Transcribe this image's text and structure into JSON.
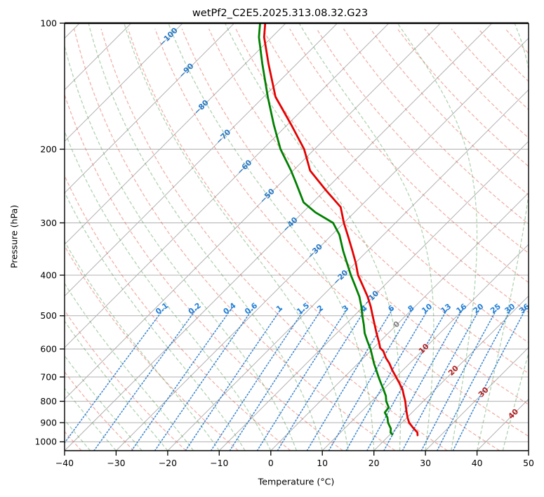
{
  "chart_data": {
    "type": "line",
    "variant": "skew-T log-p thermodynamic sounding",
    "title": "wetPf2_C2E5.2025.313.08.32.G23",
    "xlabel": "Temperature (°C)",
    "ylabel": "Pressure (hPa)",
    "xlim": [
      -40,
      50
    ],
    "pressure_lim": [
      1050,
      100
    ],
    "skew": "isotherms at 45 degrees, log-pressure vertical axis",
    "grid": true,
    "x_ticks": [
      {
        "v": -40,
        "label": "−40"
      },
      {
        "v": -30,
        "label": "−30"
      },
      {
        "v": -20,
        "label": "−20"
      },
      {
        "v": -10,
        "label": "−10"
      },
      {
        "v": 0,
        "label": "0"
      },
      {
        "v": 10,
        "label": "10"
      },
      {
        "v": 20,
        "label": "20"
      },
      {
        "v": 30,
        "label": "30"
      },
      {
        "v": 40,
        "label": "40"
      },
      {
        "v": 50,
        "label": "50"
      }
    ],
    "y_ticks": [
      {
        "v": 100,
        "label": "100"
      },
      {
        "v": 200,
        "label": "200"
      },
      {
        "v": 300,
        "label": "300"
      },
      {
        "v": 400,
        "label": "400"
      },
      {
        "v": 500,
        "label": "500"
      },
      {
        "v": 600,
        "label": "600"
      },
      {
        "v": 700,
        "label": "700"
      },
      {
        "v": 800,
        "label": "800"
      },
      {
        "v": 900,
        "label": "900"
      },
      {
        "v": 1000,
        "label": "1000"
      }
    ],
    "pressure_gridlines": [
      100,
      200,
      300,
      400,
      500,
      600,
      700,
      800,
      900,
      1000
    ],
    "isotherms": {
      "start": -120,
      "end": 50,
      "step": 10
    },
    "isotherm_labels": [
      {
        "t": -100,
        "p": 108
      },
      {
        "t": -90,
        "p": 130
      },
      {
        "t": -80,
        "p": 159
      },
      {
        "t": -70,
        "p": 187
      },
      {
        "t": -60,
        "p": 221
      },
      {
        "t": -50,
        "p": 259
      },
      {
        "t": -40,
        "p": 303
      },
      {
        "t": -30,
        "p": 351
      },
      {
        "t": -20,
        "p": 405
      },
      {
        "t": -10,
        "p": 454
      },
      {
        "t": 0,
        "p": 525
      },
      {
        "t": 10,
        "p": 600
      },
      {
        "t": 20,
        "p": 677
      },
      {
        "t": 30,
        "p": 762
      },
      {
        "t": 40,
        "p": 859
      }
    ],
    "dry_adiabats": {
      "theta_start_c": -40,
      "theta_end_c": 190,
      "step": 10
    },
    "moist_adiabats": {
      "t_start_c": -100,
      "t_end_c": 45,
      "step": 5,
      "p_start": 1050
    },
    "mixing_ratio_g_per_kg": [
      0.1,
      0.2,
      0.4,
      0.6,
      1,
      1.5,
      2,
      3,
      4,
      6,
      8,
      10,
      13,
      16,
      20,
      25,
      30,
      36
    ],
    "mixing_ratio_line_top_p": 480,
    "mixing_ratio_label_p": 487,
    "series": [
      {
        "name": "temperature",
        "units": "pairs of [pressure_hPa, temperature_C]",
        "points": [
          [
            100,
            -84.0
          ],
          [
            108,
            -81.5
          ],
          [
            125,
            -75.5
          ],
          [
            150,
            -67.7
          ],
          [
            175,
            -59.2
          ],
          [
            200,
            -52.0
          ],
          [
            225,
            -46.7
          ],
          [
            250,
            -40.0
          ],
          [
            275,
            -33.7
          ],
          [
            300,
            -30.0
          ],
          [
            325,
            -26.3
          ],
          [
            350,
            -22.9
          ],
          [
            375,
            -19.8
          ],
          [
            400,
            -17.1
          ],
          [
            425,
            -14.0
          ],
          [
            450,
            -11.1
          ],
          [
            475,
            -8.6
          ],
          [
            500,
            -6.4
          ],
          [
            525,
            -4.3
          ],
          [
            550,
            -2.3
          ],
          [
            583,
            0.3
          ],
          [
            597,
            1.3
          ],
          [
            607,
            2.5
          ],
          [
            630,
            4.3
          ],
          [
            650,
            6.1
          ],
          [
            675,
            8.0
          ],
          [
            700,
            10.0
          ],
          [
            725,
            11.9
          ],
          [
            750,
            13.7
          ],
          [
            775,
            15.1
          ],
          [
            800,
            16.5
          ],
          [
            825,
            17.7
          ],
          [
            850,
            18.9
          ],
          [
            875,
            20.1
          ],
          [
            900,
            21.4
          ],
          [
            925,
            23.1
          ],
          [
            950,
            24.9
          ],
          [
            965,
            25.5
          ]
        ]
      },
      {
        "name": "dewpoint",
        "units": "pairs of [pressure_hPa, dewpoint_C]",
        "points": [
          [
            100,
            -85.0
          ],
          [
            108,
            -82.5
          ],
          [
            125,
            -76.7
          ],
          [
            150,
            -69.2
          ],
          [
            175,
            -62.6
          ],
          [
            200,
            -56.6
          ],
          [
            225,
            -50.4
          ],
          [
            240,
            -47.2
          ],
          [
            268,
            -41.8
          ],
          [
            283,
            -37.6
          ],
          [
            300,
            -32.1
          ],
          [
            320,
            -28.6
          ],
          [
            350,
            -24.7
          ],
          [
            375,
            -21.5
          ],
          [
            400,
            -18.5
          ],
          [
            425,
            -15.5
          ],
          [
            450,
            -12.7
          ],
          [
            475,
            -10.4
          ],
          [
            500,
            -8.4
          ],
          [
            525,
            -6.4
          ],
          [
            550,
            -4.6
          ],
          [
            575,
            -2.5
          ],
          [
            600,
            -0.4
          ],
          [
            625,
            1.4
          ],
          [
            650,
            3.1
          ],
          [
            675,
            4.9
          ],
          [
            700,
            6.6
          ],
          [
            722,
            8.1
          ],
          [
            750,
            10.0
          ],
          [
            777,
            11.7
          ],
          [
            800,
            12.8
          ],
          [
            828,
            14.5
          ],
          [
            851,
            14.7
          ],
          [
            875,
            16.2
          ],
          [
            900,
            17.3
          ],
          [
            930,
            19.0
          ],
          [
            950,
            19.7
          ],
          [
            960,
            20.4
          ]
        ]
      }
    ],
    "colors": {
      "temperature": "#e50000",
      "dewpoint": "#008000",
      "pressure_grid": "#b0b0b0",
      "isotherm": "#b0b0b0",
      "dry_adiabat": "rgba(225,85,65,0.45)",
      "moist_adiabat": "rgba(70,150,70,0.42)",
      "mixing_ratio": "rgba(35,118,200,0.85)",
      "label_negative": "#2679c8",
      "label_zero": "#808080",
      "label_positive": "#b22222",
      "mixing_label": "#2380d8",
      "axis": "#000000"
    }
  }
}
